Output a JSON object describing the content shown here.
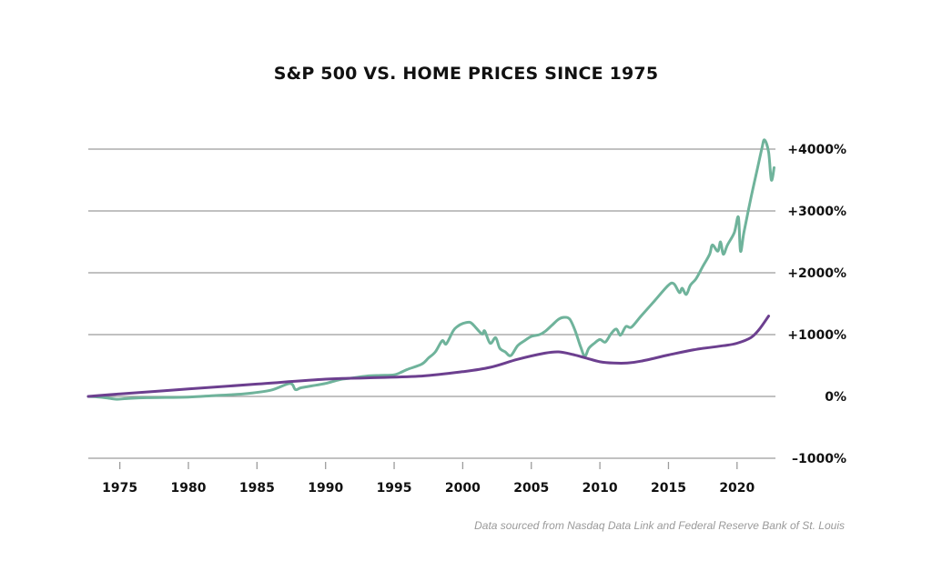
{
  "chart_data": {
    "type": "line",
    "title": "S&P 500 VS. HOME PRICES SINCE 1975",
    "source": "Data sourced from Nasdaq Data Link and Federal Reserve Bank of St. Louis",
    "xlim": [
      1972.7,
      2022.8
    ],
    "ylim": [
      -1000,
      4000
    ],
    "x_ticks": [
      1975,
      1980,
      1985,
      1990,
      1995,
      2000,
      2005,
      2010,
      2015,
      2020
    ],
    "x_tick_labels": [
      "1975",
      "1980",
      "1985",
      "1990",
      "1995",
      "2000",
      "2005",
      "2010",
      "2015",
      "2020"
    ],
    "y_ticks": [
      -1000,
      0,
      1000,
      2000,
      3000,
      4000
    ],
    "y_tick_labels": [
      "–1000%",
      "0%",
      "+1000%",
      "+2000%",
      "+3000%",
      "+4000%"
    ],
    "grid": true,
    "legend": "none",
    "series": [
      {
        "color": "#6fb39b",
        "x": [
          1972.7,
          1973.5,
          1974.2,
          1974.8,
          1975.5,
          1977,
          1980,
          1982,
          1984,
          1986,
          1987.4,
          1987.8,
          1988.2,
          1989,
          1990,
          1991,
          1992,
          1993,
          1994,
          1995,
          1995.6,
          1996,
          1997,
          1997.5,
          1998,
          1998.5,
          1998.8,
          1999.3,
          1999.6,
          2000,
          2000.5,
          2000.8,
          2001.4,
          2001.6,
          2002,
          2002.4,
          2002.7,
          2003.1,
          2003.5,
          2004,
          2004.5,
          2005,
          2005.6,
          2006,
          2006.5,
          2007,
          2007.4,
          2007.8,
          2008.2,
          2008.6,
          2008.9,
          2009.2,
          2009.6,
          2010,
          2010.4,
          2010.8,
          2011.2,
          2011.5,
          2011.9,
          2012.3,
          2013,
          2014,
          2015,
          2015.4,
          2015.8,
          2016,
          2016.3,
          2016.6,
          2017,
          2017.5,
          2018,
          2018.2,
          2018.6,
          2018.8,
          2019,
          2019.3,
          2019.8,
          2020.1,
          2020.25,
          2020.5,
          2021,
          2021.5,
          2021.8,
          2022,
          2022.3,
          2022.5,
          2022.7
        ],
        "y": [
          0,
          -10,
          -30,
          -45,
          -35,
          -20,
          -10,
          15,
          40,
          100,
          210,
          110,
          140,
          170,
          210,
          270,
          300,
          330,
          340,
          350,
          400,
          440,
          520,
          620,
          720,
          900,
          850,
          1060,
          1130,
          1180,
          1200,
          1150,
          1010,
          1060,
          860,
          950,
          780,
          720,
          660,
          820,
          900,
          970,
          1000,
          1050,
          1150,
          1250,
          1280,
          1250,
          1060,
          800,
          650,
          780,
          860,
          920,
          880,
          1010,
          1090,
          990,
          1130,
          1120,
          1300,
          1550,
          1800,
          1820,
          1680,
          1750,
          1650,
          1800,
          1900,
          2100,
          2300,
          2450,
          2350,
          2500,
          2300,
          2450,
          2650,
          2900,
          2350,
          2650,
          3200,
          3700,
          4000,
          4150,
          3950,
          3500,
          3700
        ]
      },
      {
        "color": "#6c3f8f",
        "x": [
          1972.7,
          1975,
          1980,
          1985,
          1990,
          1993,
          1997,
          2000,
          2002,
          2004,
          2006,
          2007,
          2008,
          2009,
          2010,
          2011,
          2012,
          2013,
          2015,
          2017,
          2019,
          2020,
          2021,
          2021.6,
          2022.3
        ],
        "y": [
          0,
          40,
          120,
          200,
          280,
          300,
          330,
          400,
          470,
          600,
          700,
          720,
          680,
          620,
          560,
          540,
          540,
          570,
          670,
          760,
          820,
          860,
          950,
          1080,
          1300
        ]
      }
    ]
  }
}
